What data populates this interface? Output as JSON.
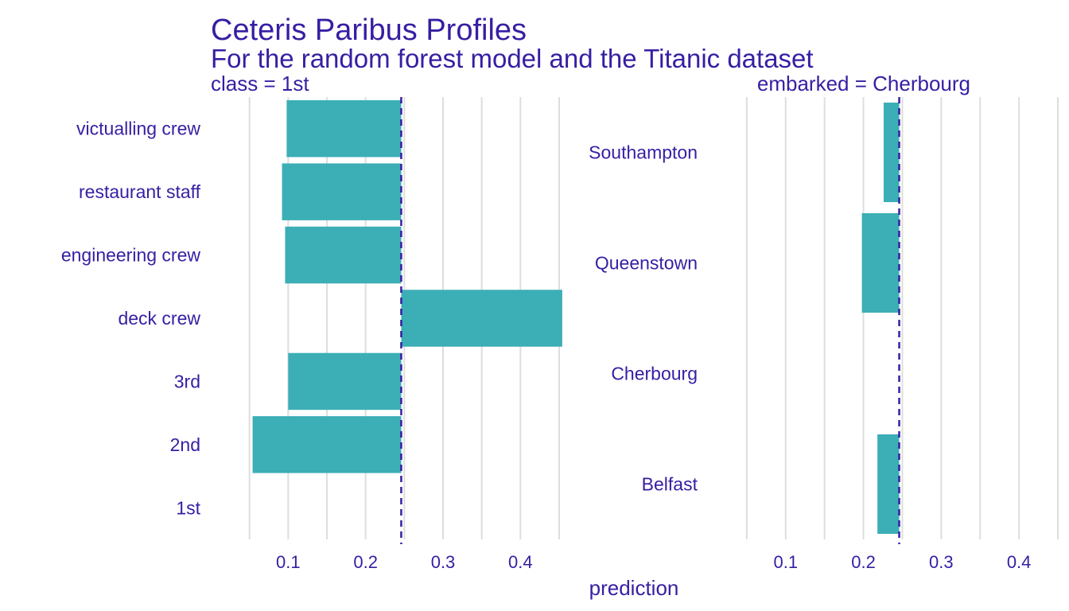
{
  "colors": {
    "bar": "#3caeb6",
    "text": "#371ea3",
    "grid": "#dedede",
    "baseline": "#371ea3"
  },
  "chart_data": {
    "type": "bar",
    "orientation": "horizontal",
    "title": "Ceteris Paribus Profiles",
    "subtitle": "For the random forest model and the Titanic dataset",
    "xlabel": "prediction",
    "xlim": [
      0.0,
      0.45
    ],
    "xticks": [
      0.1,
      0.2,
      0.3,
      0.4
    ],
    "xtick_labels": [
      "0.1",
      "0.2",
      "0.3",
      "0.4"
    ],
    "grid": true,
    "baseline": 0.246,
    "panels": [
      {
        "title": "class = 1st",
        "categories": [
          "victualling crew",
          "restaurant staff",
          "engineering crew",
          "deck crew",
          "3rd",
          "2nd",
          "1st"
        ],
        "values": [
          0.098,
          0.092,
          0.096,
          0.454,
          0.1,
          0.054,
          0.246
        ]
      },
      {
        "title": "embarked = Cherbourg",
        "categories": [
          "Southampton",
          "Queenstown",
          "Cherbourg",
          "Belfast"
        ],
        "values": [
          0.226,
          0.198,
          0.246,
          0.218
        ]
      }
    ]
  }
}
